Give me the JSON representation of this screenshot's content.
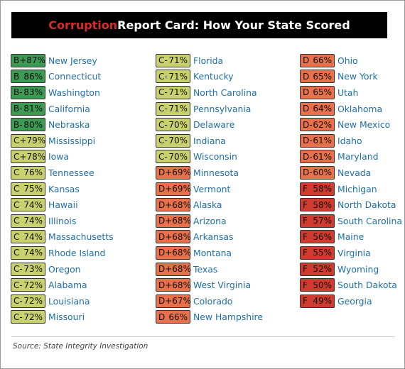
{
  "title": {
    "highlight": "Corruption",
    "rest": " Report Card: How Your State Scored"
  },
  "source": "Source: State Integrity Investigation",
  "colors": {
    "B": "#3c9a52",
    "C": "#c9d16e",
    "D": "#e8704a",
    "F": "#cf3b2e"
  },
  "chart_data": {
    "type": "table",
    "columns": [
      "grade",
      "score",
      "state"
    ],
    "rows": [
      {
        "grade": "B+",
        "score": "87%",
        "state": "New Jersey"
      },
      {
        "grade": "B",
        "score": "86%",
        "state": "Connecticut"
      },
      {
        "grade": "B-",
        "score": "83%",
        "state": "Washington"
      },
      {
        "grade": "B-",
        "score": "81%",
        "state": "California"
      },
      {
        "grade": "B-",
        "score": "80%",
        "state": "Nebraska"
      },
      {
        "grade": "C+",
        "score": "79%",
        "state": "Mississippi"
      },
      {
        "grade": "C+",
        "score": "78%",
        "state": "Iowa"
      },
      {
        "grade": "C",
        "score": "76%",
        "state": "Tennessee"
      },
      {
        "grade": "C",
        "score": "75%",
        "state": "Kansas"
      },
      {
        "grade": "C",
        "score": "74%",
        "state": "Hawaii"
      },
      {
        "grade": "C",
        "score": "74%",
        "state": "Illinois"
      },
      {
        "grade": "C",
        "score": "74%",
        "state": "Massachusetts"
      },
      {
        "grade": "C",
        "score": "74%",
        "state": "Rhode Island"
      },
      {
        "grade": "C-",
        "score": "73%",
        "state": "Oregon"
      },
      {
        "grade": "C-",
        "score": "72%",
        "state": "Alabama"
      },
      {
        "grade": "C-",
        "score": "72%",
        "state": "Louisiana"
      },
      {
        "grade": "C-",
        "score": "72%",
        "state": "Missouri"
      },
      {
        "grade": "C-",
        "score": "71%",
        "state": "Florida"
      },
      {
        "grade": "C-",
        "score": "71%",
        "state": "Kentucky"
      },
      {
        "grade": "C-",
        "score": "71%",
        "state": "North Carolina"
      },
      {
        "grade": "C-",
        "score": "71%",
        "state": "Pennsylvania"
      },
      {
        "grade": "C-",
        "score": "70%",
        "state": "Delaware"
      },
      {
        "grade": "C-",
        "score": "70%",
        "state": "Indiana"
      },
      {
        "grade": "C-",
        "score": "70%",
        "state": "Wisconsin"
      },
      {
        "grade": "D+",
        "score": "69%",
        "state": "Minnesota"
      },
      {
        "grade": "D+",
        "score": "69%",
        "state": "Vermont"
      },
      {
        "grade": "D+",
        "score": "68%",
        "state": "Alaska"
      },
      {
        "grade": "D+",
        "score": "68%",
        "state": "Arizona"
      },
      {
        "grade": "D+",
        "score": "68%",
        "state": "Arkansas"
      },
      {
        "grade": "D+",
        "score": "68%",
        "state": "Montana"
      },
      {
        "grade": "D+",
        "score": "68%",
        "state": "Texas"
      },
      {
        "grade": "D+",
        "score": "68%",
        "state": "West Virginia"
      },
      {
        "grade": "D+",
        "score": "67%",
        "state": "Colorado"
      },
      {
        "grade": "D",
        "score": "66%",
        "state": "New Hampshire"
      },
      {
        "grade": "D",
        "score": "66%",
        "state": "Ohio"
      },
      {
        "grade": "D",
        "score": "65%",
        "state": "New York"
      },
      {
        "grade": "D",
        "score": "65%",
        "state": "Utah"
      },
      {
        "grade": "D",
        "score": "64%",
        "state": "Oklahoma"
      },
      {
        "grade": "D-",
        "score": "62%",
        "state": "New Mexico"
      },
      {
        "grade": "D-",
        "score": "61%",
        "state": "Idaho"
      },
      {
        "grade": "D-",
        "score": "61%",
        "state": "Maryland"
      },
      {
        "grade": "D-",
        "score": "60%",
        "state": "Nevada"
      },
      {
        "grade": "F",
        "score": "58%",
        "state": "Michigan"
      },
      {
        "grade": "F",
        "score": "58%",
        "state": "North Dakota"
      },
      {
        "grade": "F",
        "score": "57%",
        "state": "South Carolina"
      },
      {
        "grade": "F",
        "score": "56%",
        "state": "Maine"
      },
      {
        "grade": "F",
        "score": "55%",
        "state": "Virginia"
      },
      {
        "grade": "F",
        "score": "52%",
        "state": "Wyoming"
      },
      {
        "grade": "F",
        "score": "50%",
        "state": "South Dakota"
      },
      {
        "grade": "F",
        "score": "49%",
        "state": "Georgia"
      }
    ]
  }
}
